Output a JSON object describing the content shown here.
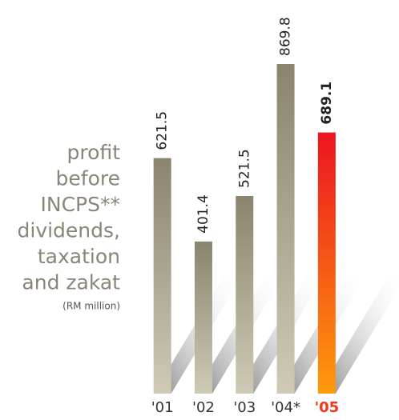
{
  "chart_data": {
    "type": "bar",
    "title_lines": [
      "profit",
      "before",
      "INCPS**",
      "dividends,",
      "taxation",
      "and zakat"
    ],
    "subtitle": "(RM million)",
    "categories": [
      "'01",
      "'02",
      "'03",
      "'04*",
      "'05"
    ],
    "values": [
      621.5,
      401.4,
      521.5,
      869.8,
      689.1
    ],
    "colors": [
      "#a8a38d",
      "#a8a38d",
      "#a8a38d",
      "#a8a38d",
      "#f2361a"
    ]
  }
}
